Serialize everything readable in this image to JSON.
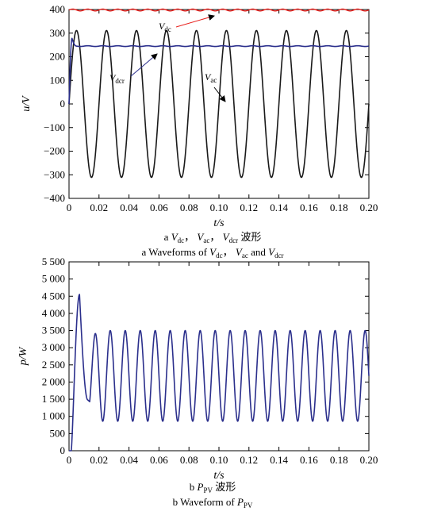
{
  "chart_data": [
    {
      "type": "line",
      "ylabel": "u/V",
      "xlabel": "t/s",
      "xlim": [
        0,
        0.2
      ],
      "ylim": [
        -400,
        400
      ],
      "x_ticks": [
        "0",
        "0.02",
        "0.04",
        "0.06",
        "0.08",
        "0.10",
        "0.12",
        "0.14",
        "0.16",
        "0.18",
        "0.20"
      ],
      "y_ticks": [
        "400",
        "300",
        "200",
        "100",
        "0",
        "−100",
        "−200",
        "−300",
        "−400"
      ],
      "series": [
        {
          "name": "V_dc",
          "color": "#e8201c",
          "mean": 398,
          "ripple_amplitude": 4,
          "ripple_frequency_hz": 100
        },
        {
          "name": "V_ac",
          "color": "#1a1a1a",
          "amplitude": 311,
          "frequency_hz": 50,
          "phase": "sine"
        },
        {
          "name": "V_dcr",
          "color": "#2b2f8c",
          "steady_value": 245,
          "overshoot_peak": 278,
          "settle_time_s": 0.005
        }
      ],
      "annotations": [
        {
          "label": "V",
          "sub": "dc",
          "target_series": "V_dc"
        },
        {
          "label": "V",
          "sub": "dcr",
          "target_series": "V_dcr"
        },
        {
          "label": "V",
          "sub": "ac",
          "target_series": "V_ac"
        }
      ],
      "caption_cn": {
        "prefix": "a ",
        "v1": "V",
        "s1": "dc",
        "sep1": "， ",
        "v2": "V",
        "s2": "ac",
        "sep2": "， ",
        "v3": "V",
        "s3": "dcr",
        "suffix": " 波形"
      },
      "caption_en": {
        "prefix": "a  Waveforms of ",
        "v1": "V",
        "s1": "dc",
        "sep1": "， ",
        "v2": "V",
        "s2": "ac",
        "sep2": " and ",
        "v3": "V",
        "s3": "dcr",
        "suffix": ""
      }
    },
    {
      "type": "line",
      "ylabel": "p/W",
      "xlabel": "t/s",
      "xlim": [
        0,
        0.2
      ],
      "ylim": [
        0,
        5500
      ],
      "x_ticks": [
        "0",
        "0.02",
        "0.04",
        "0.06",
        "0.08",
        "0.10",
        "0.12",
        "0.14",
        "0.16",
        "0.18",
        "0.20"
      ],
      "y_ticks": [
        "5 500",
        "5 000",
        "4 500",
        "4 000",
        "3 500",
        "3 000",
        "2 500",
        "2 000",
        "1 500",
        "1 000",
        "500",
        "0"
      ],
      "series": [
        {
          "name": "P_PV",
          "color": "#2b2f8c",
          "startup_peak": 4550,
          "startup_peak_time_s": 0.007,
          "mean": 2180,
          "max": 3500,
          "min": 860,
          "frequency_hz": 100
        }
      ],
      "caption_cn": {
        "prefix": "b  ",
        "v1": "P",
        "s1": "PV",
        "suffix": " 波形"
      },
      "caption_en": {
        "prefix": "b  Waveform of ",
        "v1": "P",
        "s1": "PV",
        "suffix": ""
      }
    }
  ]
}
